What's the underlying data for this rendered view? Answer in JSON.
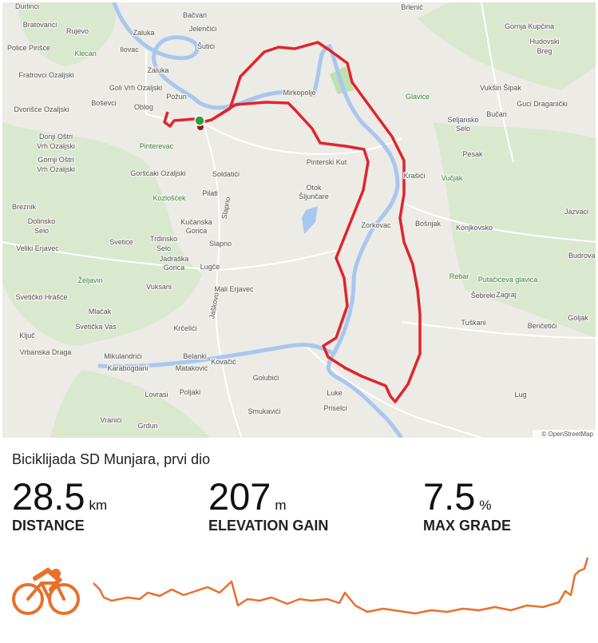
{
  "map": {
    "labels": [
      "Durlinci",
      "Bratovanci",
      "Rujevo",
      "Zaluka",
      "Bačvari",
      "Jelenčići",
      "Šutići",
      "Police Pirišće",
      "Ilovac",
      "Klecan",
      "Zaluka",
      "Fratrovci Ozaljski",
      "Goli Vrh Ozaljski",
      "Požun",
      "Boševci",
      "Dvorišće Ozaljski",
      "Oblog",
      "Mirkopolje",
      "Glavice",
      "Vukšin Šipak",
      "Guci Draganički",
      "Gornja Kupčina",
      "Hudovski",
      "Breg",
      "Brlenić",
      "Seljansko",
      "Selo",
      "Bučari",
      "Donji Oštri",
      "Vrh Ozaljski",
      "Pinterevac",
      "Gornji Oštri",
      "Vrh Ozaljski",
      "Pesak",
      "Pinterski Kut",
      "Krašići",
      "Vučjak",
      "Goršćaki Ozaljski",
      "Soldatići",
      "Kozlošćek",
      "Pilati",
      "Otok",
      "Šljunčare",
      "Breznik",
      "Zorkovac",
      "Bošnjak",
      "Konjkovsko",
      "Jazvaci",
      "Dolinsko",
      "Selo",
      "Kučanska",
      "Gorica",
      "Svetice",
      "Trdinsko",
      "Selo",
      "Slapno",
      "Veliki Erjavec",
      "Jadraška",
      "Gorica",
      "Lugče",
      "Rebar",
      "Putačićeva glavica",
      "Budrovac",
      "Željavin",
      "Šebreki",
      "Vuksani",
      "Mali Erjavec",
      "Zagraj",
      "Svetičko Hrašće",
      "Mlačak",
      "Tuškani",
      "Benčetići",
      "Goljak",
      "Svetička Vas",
      "Krčelići",
      "Ključ",
      "Vrbanska Draga",
      "Mikulandrići",
      "Belanki",
      "Karabogdani",
      "Mataković",
      "Kovačić",
      "Golubići",
      "Lovrasi",
      "Poljaki",
      "Luke",
      "Lug",
      "Priselci",
      "Smukavići",
      "Vranići",
      "Grdun",
      "Slapno",
      "Jaškovo"
    ],
    "attribution": "© OpenStreetMap"
  },
  "activity": {
    "title": "Biciklijada SD Munjara, prvi dio",
    "stats": [
      {
        "value": 28.5,
        "unit": "km",
        "label": "DISTANCE"
      },
      {
        "value": 207,
        "unit": "m",
        "label": "ELEVATION GAIN"
      },
      {
        "value": 7.5,
        "unit": "%",
        "label": "MAX GRADE"
      }
    ]
  }
}
